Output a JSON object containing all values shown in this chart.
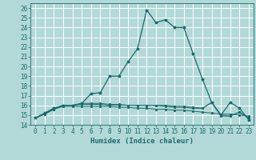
{
  "xlabel": "Humidex (Indice chaleur)",
  "bg_color": "#b2d8d8",
  "grid_color": "#ffffff",
  "line_color": "#1a6b6b",
  "xlim": [
    -0.5,
    23.5
  ],
  "ylim": [
    14,
    26.5
  ],
  "xticks": [
    0,
    1,
    2,
    3,
    4,
    5,
    6,
    7,
    8,
    9,
    10,
    11,
    12,
    13,
    14,
    15,
    16,
    17,
    18,
    19,
    20,
    21,
    22,
    23
  ],
  "yticks": [
    14,
    15,
    16,
    17,
    18,
    19,
    20,
    21,
    22,
    23,
    24,
    25,
    26
  ],
  "main_x": [
    0,
    1,
    2,
    3,
    4,
    5,
    6,
    7,
    8,
    9,
    10,
    11,
    12,
    13,
    14,
    15,
    16,
    17,
    18,
    19,
    20,
    21,
    22,
    23
  ],
  "main_y": [
    14.7,
    15.2,
    15.7,
    16.0,
    16.0,
    16.2,
    17.2,
    17.3,
    19.0,
    19.0,
    20.5,
    21.8,
    25.8,
    24.5,
    24.8,
    24.0,
    24.0,
    21.3,
    18.7,
    16.3,
    15.0,
    16.3,
    15.7,
    14.5
  ],
  "flat1_x": [
    0,
    1,
    2,
    3,
    4,
    5,
    6,
    7,
    8,
    9,
    10,
    11,
    12,
    13,
    14,
    15,
    16,
    17,
    18,
    19,
    20,
    21,
    22,
    23
  ],
  "flat1_y": [
    14.7,
    15.1,
    15.6,
    15.9,
    15.9,
    15.9,
    15.9,
    15.9,
    15.9,
    15.8,
    15.8,
    15.7,
    15.7,
    15.6,
    15.6,
    15.5,
    15.5,
    15.4,
    15.3,
    15.2,
    15.1,
    15.1,
    15.0,
    14.9
  ],
  "flat2_x": [
    0,
    1,
    2,
    3,
    4,
    5,
    6,
    7,
    8,
    9,
    10,
    11,
    12,
    13,
    14,
    15,
    16,
    17,
    18,
    19,
    20,
    21,
    22,
    23
  ],
  "flat2_y": [
    14.7,
    15.1,
    15.6,
    16.0,
    16.0,
    16.1,
    16.1,
    16.1,
    16.0,
    16.0,
    16.0,
    16.0,
    16.0,
    16.0,
    16.0,
    15.9,
    15.9,
    15.8,
    15.7,
    16.3,
    14.9,
    14.9,
    15.3,
    14.7
  ],
  "flat3_x": [
    0,
    1,
    2,
    3,
    4,
    5,
    6,
    7,
    8,
    9,
    10,
    11,
    12,
    13,
    14,
    15,
    16,
    17,
    18,
    19,
    20,
    21,
    22,
    23
  ],
  "flat3_y": [
    14.7,
    15.2,
    15.7,
    16.0,
    16.0,
    16.2,
    16.2,
    16.2,
    16.1,
    16.1,
    16.0,
    16.0,
    16.0,
    16.0,
    15.9,
    15.8,
    15.8,
    15.7,
    15.7,
    16.3,
    15.0,
    14.9,
    15.3,
    14.7
  ],
  "tick_fontsize": 5.5,
  "xlabel_fontsize": 6.5
}
